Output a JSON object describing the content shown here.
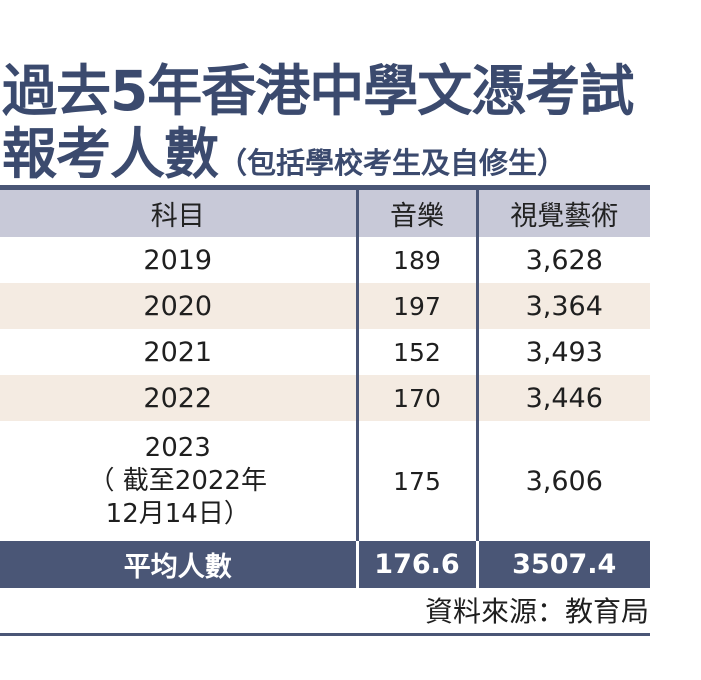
{
  "title": {
    "line1": "過去5年香港中學文憑考試",
    "line2_main": "報考人數",
    "line2_sub": "（包括學校考生及自修生）"
  },
  "table": {
    "headers": [
      "科目",
      "音樂",
      "視覺藝術"
    ],
    "rows": [
      {
        "year": "2019",
        "music": "189",
        "visual_arts": "3,628"
      },
      {
        "year": "2020",
        "music": "197",
        "visual_arts": "3,364"
      },
      {
        "year": "2021",
        "music": "152",
        "visual_arts": "3,493"
      },
      {
        "year": "2022",
        "music": "170",
        "visual_arts": "3,446"
      },
      {
        "year_lines": [
          "2023",
          "（ 截至2022年",
          "12月14日）"
        ],
        "music": "175",
        "visual_arts": "3,606"
      }
    ],
    "average": {
      "label": "平均人數",
      "music": "176.6",
      "visual_arts": "3507.4"
    }
  },
  "source": "資料來源：教育局",
  "colors": {
    "accent": "#3b4a6e",
    "header_bg": "#c8c9d8",
    "alt_row_bg": "#f4ebe2",
    "footer_bg": "#4a5676"
  }
}
